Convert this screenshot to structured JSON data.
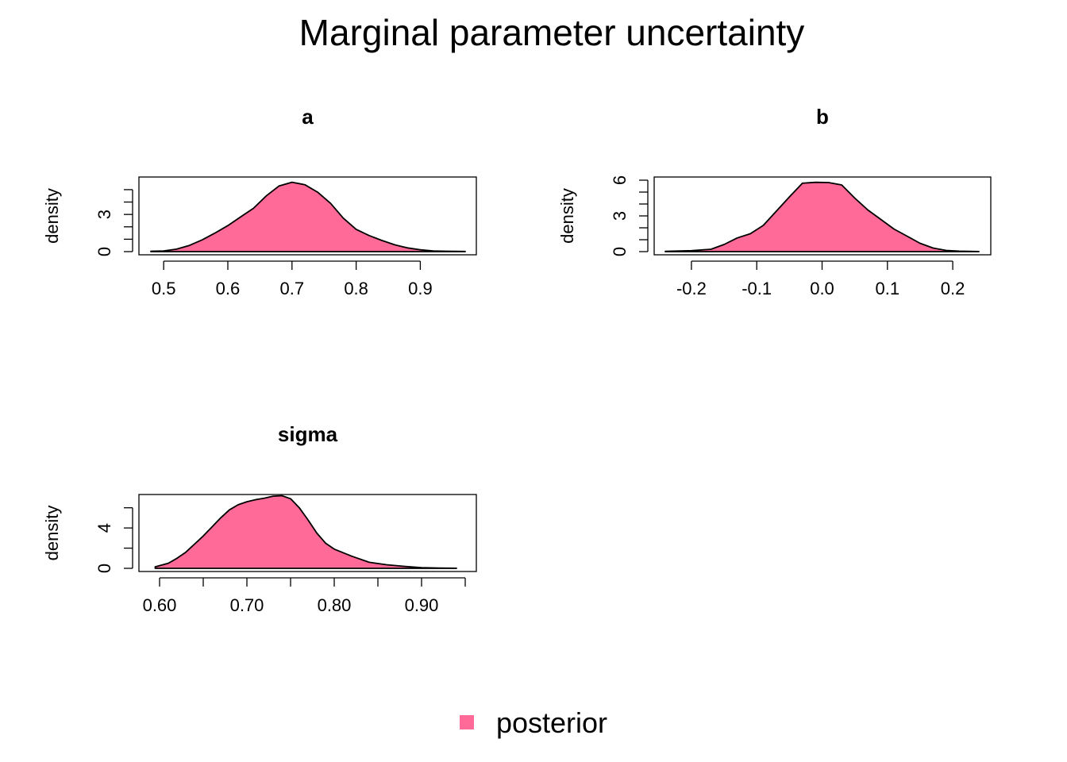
{
  "title": "Marginal parameter uncertainty",
  "legend": {
    "label": "posterior",
    "color": "#FF6A98"
  },
  "style": {
    "fill": "#FF6A98",
    "stroke": "#000000"
  },
  "chart_data": [
    {
      "type": "area",
      "title": "a",
      "xlabel": "",
      "ylabel": "density",
      "xlim": [
        0.48,
        0.97
      ],
      "ylim": [
        0,
        5.7
      ],
      "xticks": [
        0.5,
        0.6,
        0.7,
        0.8,
        0.9
      ],
      "xtick_labels": [
        "0.5",
        "0.6",
        "0.7",
        "0.8",
        "0.9"
      ],
      "yticks": [
        0,
        1,
        2,
        3,
        4,
        5
      ],
      "ytick_labels": [
        "0",
        "",
        "",
        "3",
        "",
        ""
      ],
      "x": [
        0.48,
        0.5,
        0.52,
        0.54,
        0.56,
        0.58,
        0.6,
        0.62,
        0.64,
        0.66,
        0.68,
        0.7,
        0.72,
        0.74,
        0.76,
        0.78,
        0.8,
        0.82,
        0.84,
        0.86,
        0.88,
        0.9,
        0.92,
        0.94,
        0.97
      ],
      "y": [
        0.03,
        0.06,
        0.2,
        0.5,
        0.95,
        1.5,
        2.1,
        2.8,
        3.5,
        4.5,
        5.3,
        5.6,
        5.4,
        4.8,
        3.9,
        2.7,
        1.8,
        1.3,
        0.9,
        0.55,
        0.3,
        0.15,
        0.06,
        0.03,
        0.01
      ]
    },
    {
      "type": "area",
      "title": "b",
      "xlabel": "",
      "ylabel": "density",
      "xlim": [
        -0.24,
        0.24
      ],
      "ylim": [
        0,
        6
      ],
      "xticks": [
        -0.2,
        -0.1,
        0.0,
        0.1,
        0.2
      ],
      "xtick_labels": [
        "-0.2",
        "-0.1",
        "0.0",
        "0.1",
        "0.2"
      ],
      "yticks": [
        0,
        1,
        2,
        3,
        4,
        5,
        6
      ],
      "ytick_labels": [
        "0",
        "",
        "",
        "3",
        "",
        "",
        "6"
      ],
      "x": [
        -0.24,
        -0.2,
        -0.17,
        -0.15,
        -0.13,
        -0.11,
        -0.09,
        -0.07,
        -0.05,
        -0.03,
        -0.01,
        0.01,
        0.03,
        0.05,
        0.07,
        0.09,
        0.11,
        0.13,
        0.15,
        0.17,
        0.19,
        0.21,
        0.24
      ],
      "y": [
        0.03,
        0.08,
        0.2,
        0.6,
        1.15,
        1.5,
        2.2,
        3.4,
        4.6,
        5.75,
        5.82,
        5.8,
        5.6,
        4.5,
        3.5,
        2.7,
        1.9,
        1.3,
        0.7,
        0.3,
        0.1,
        0.04,
        0.01
      ]
    },
    {
      "type": "area",
      "title": "sigma",
      "xlabel": "",
      "ylabel": "density",
      "xlim": [
        0.59,
        0.95
      ],
      "ylim": [
        0,
        7
      ],
      "xticks": [
        0.6,
        0.65,
        0.7,
        0.75,
        0.8,
        0.85,
        0.9,
        0.95
      ],
      "xtick_labels": [
        "0.60",
        "",
        "0.70",
        "",
        "0.80",
        "",
        "0.90",
        ""
      ],
      "yticks": [
        0,
        2,
        4,
        6
      ],
      "ytick_labels": [
        "0",
        "",
        "4",
        ""
      ],
      "x": [
        0.595,
        0.61,
        0.62,
        0.63,
        0.64,
        0.65,
        0.66,
        0.67,
        0.68,
        0.69,
        0.7,
        0.71,
        0.72,
        0.73,
        0.74,
        0.75,
        0.76,
        0.77,
        0.78,
        0.79,
        0.8,
        0.82,
        0.84,
        0.86,
        0.88,
        0.9,
        0.92,
        0.94
      ],
      "y": [
        0.15,
        0.5,
        1.0,
        1.6,
        2.4,
        3.2,
        4.1,
        5.0,
        5.8,
        6.3,
        6.6,
        6.8,
        6.95,
        7.15,
        7.2,
        6.9,
        6.0,
        4.8,
        3.5,
        2.5,
        1.9,
        1.2,
        0.6,
        0.35,
        0.2,
        0.06,
        0.02,
        0.01
      ]
    }
  ]
}
